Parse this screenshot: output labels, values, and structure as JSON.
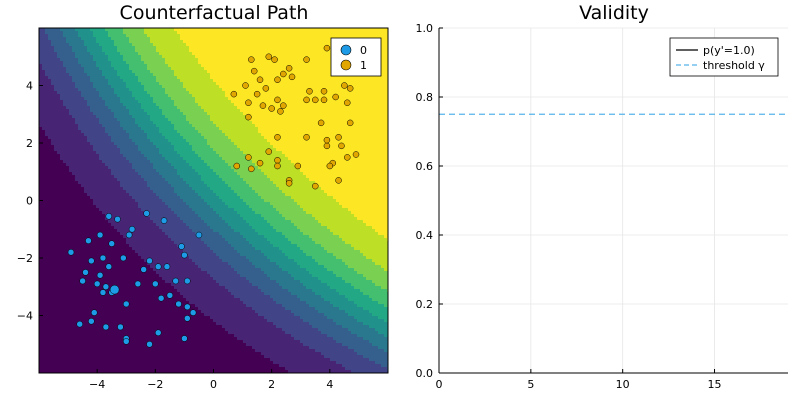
{
  "chart_data": [
    {
      "type": "scatter",
      "title": "Counterfactual Path",
      "xlabel": "",
      "ylabel": "",
      "xlim": [
        -6,
        6
      ],
      "ylim": [
        -6,
        6
      ],
      "xticks": [
        -4,
        -2,
        0,
        2,
        4
      ],
      "yticks": [
        -4,
        -2,
        0,
        2,
        4
      ],
      "background": "filled contour of p(y=1), viridis colormap",
      "legend": {
        "placement": "top-right",
        "entries": [
          "0",
          "1"
        ]
      },
      "series": [
        {
          "name": "0",
          "color": "#1e9be6",
          "points": [
            [
              -4.9,
              -1.8
            ],
            [
              -4.3,
              -1.4
            ],
            [
              -3.6,
              -0.55
            ],
            [
              -3.3,
              -0.65
            ],
            [
              -2.8,
              -1.0
            ],
            [
              -2.3,
              -0.45
            ],
            [
              -1.7,
              -0.7
            ],
            [
              -0.5,
              -1.2
            ],
            [
              -3.9,
              -1.2
            ],
            [
              -3.5,
              -1.5
            ],
            [
              -2.9,
              -1.2
            ],
            [
              -3.8,
              -2.0
            ],
            [
              -4.2,
              -2.1
            ],
            [
              -3.1,
              -2.0
            ],
            [
              -2.4,
              -2.4
            ],
            [
              -2.2,
              -2.1
            ],
            [
              -1.9,
              -2.3
            ],
            [
              -1.6,
              -2.3
            ],
            [
              -1.1,
              -1.6
            ],
            [
              -1.0,
              -1.9
            ],
            [
              -3.6,
              -2.3
            ],
            [
              -3.9,
              -2.6
            ],
            [
              -4.4,
              -2.5
            ],
            [
              -4.5,
              -2.8
            ],
            [
              -4.0,
              -2.9
            ],
            [
              -3.5,
              -3.2
            ],
            [
              -3.7,
              -3.0
            ],
            [
              -2.6,
              -2.9
            ],
            [
              -2.0,
              -2.9
            ],
            [
              -1.3,
              -2.8
            ],
            [
              -1.5,
              -3.3
            ],
            [
              -3.0,
              -3.6
            ],
            [
              -1.8,
              -3.4
            ],
            [
              -1.9,
              -4.6
            ],
            [
              -1.2,
              -3.6
            ],
            [
              -0.9,
              -2.8
            ],
            [
              -0.9,
              -3.7
            ],
            [
              -0.9,
              -4.1
            ],
            [
              -0.7,
              -3.9
            ],
            [
              -1.0,
              -4.8
            ],
            [
              -4.6,
              -4.3
            ],
            [
              -4.2,
              -4.2
            ],
            [
              -4.1,
              -3.9
            ],
            [
              -3.7,
              -4.4
            ],
            [
              -3.2,
              -4.4
            ],
            [
              -3.0,
              -4.8
            ],
            [
              -3.0,
              -4.9
            ],
            [
              -2.2,
              -5.0
            ],
            [
              -3.8,
              -3.2
            ]
          ]
        },
        {
          "name": "1",
          "color": "#e1a600",
          "points": [
            [
              0.7,
              3.7
            ],
            [
              1.2,
              2.9
            ],
            [
              1.1,
              4.0
            ],
            [
              1.3,
              4.9
            ],
            [
              1.4,
              4.5
            ],
            [
              1.6,
              4.2
            ],
            [
              1.9,
              5.0
            ],
            [
              2.1,
              4.9
            ],
            [
              2.4,
              4.4
            ],
            [
              2.6,
              4.6
            ],
            [
              2.2,
              4.2
            ],
            [
              2.7,
              4.3
            ],
            [
              3.2,
              4.9
            ],
            [
              3.9,
              5.3
            ],
            [
              4.2,
              5.0
            ],
            [
              4.5,
              5.0
            ],
            [
              1.8,
              3.9
            ],
            [
              1.5,
              3.7
            ],
            [
              1.7,
              3.3
            ],
            [
              2.2,
              3.5
            ],
            [
              2.4,
              3.3
            ],
            [
              2.3,
              3.1
            ],
            [
              3.2,
              3.5
            ],
            [
              3.3,
              3.8
            ],
            [
              3.5,
              3.5
            ],
            [
              3.8,
              3.8
            ],
            [
              3.8,
              3.5
            ],
            [
              4.2,
              3.6
            ],
            [
              4.5,
              4.0
            ],
            [
              4.7,
              3.9
            ],
            [
              4.6,
              3.4
            ],
            [
              4.7,
              2.7
            ],
            [
              1.2,
              3.4
            ],
            [
              2.0,
              3.2
            ],
            [
              3.7,
              2.7
            ],
            [
              3.2,
              2.2
            ],
            [
              2.2,
              2.2
            ],
            [
              1.9,
              1.7
            ],
            [
              1.2,
              1.5
            ],
            [
              0.8,
              1.2
            ],
            [
              1.3,
              1.1
            ],
            [
              1.6,
              1.3
            ],
            [
              2.2,
              1.4
            ],
            [
              2.2,
              1.2
            ],
            [
              2.9,
              1.2
            ],
            [
              3.9,
              1.9
            ],
            [
              4.1,
              1.3
            ],
            [
              4.4,
              1.9
            ],
            [
              4.6,
              1.5
            ],
            [
              4.9,
              1.6
            ],
            [
              2.6,
              0.7
            ],
            [
              2.6,
              0.6
            ],
            [
              3.5,
              0.5
            ],
            [
              4.3,
              0.7
            ],
            [
              3.9,
              2.1
            ],
            [
              4.0,
              1.2
            ],
            [
              4.3,
              2.2
            ]
          ]
        },
        {
          "name": "",
          "color": "#1e9be6",
          "points": [
            [
              -3.4,
              -3.1
            ]
          ]
        }
      ]
    },
    {
      "type": "line",
      "title": "Validity",
      "xlabel": "",
      "ylabel": "",
      "xlim": [
        0,
        19
      ],
      "ylim": [
        0,
        1
      ],
      "xticks": [
        0,
        5,
        10,
        15
      ],
      "yticks": [
        "0.0",
        "0.2",
        "0.4",
        "0.6",
        "0.8",
        "1.0"
      ],
      "grid": true,
      "legend": {
        "placement": "top-right"
      },
      "series": [
        {
          "name": "p(y'=1.0)",
          "color": "#000000",
          "style": "solid",
          "x": [],
          "y": []
        },
        {
          "name": "threshold γ",
          "color": "#56b4e9",
          "style": "dashed",
          "value": 0.75
        }
      ]
    }
  ]
}
